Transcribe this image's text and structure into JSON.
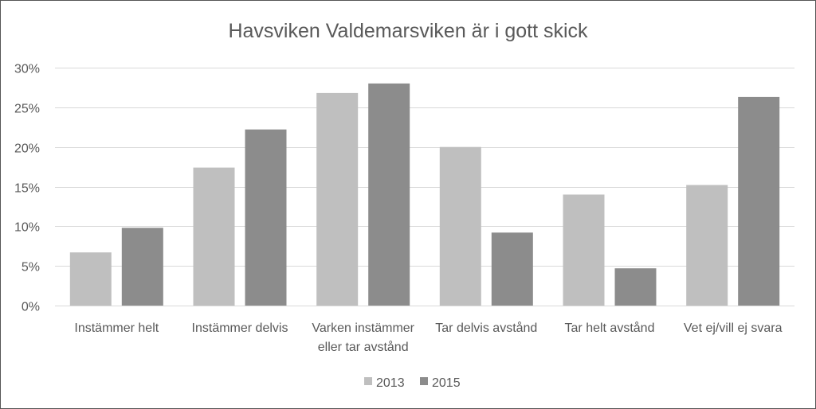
{
  "chart_data": {
    "type": "bar",
    "title": "Havsviken Valdemarsviken är i gott skick",
    "categories": [
      [
        "Instämmer helt"
      ],
      [
        "Instämmer delvis"
      ],
      [
        "Varken instämmer",
        "eller tar avstånd"
      ],
      [
        "Tar delvis avstånd"
      ],
      [
        "Tar helt avstånd"
      ],
      [
        "Vet ej/vill ej svara"
      ]
    ],
    "series": [
      {
        "name": "2013",
        "color": "#bfbfbf",
        "values": [
          6.7,
          17.4,
          26.8,
          20.0,
          14.0,
          15.2
        ]
      },
      {
        "name": "2015",
        "color": "#8c8c8c",
        "values": [
          9.8,
          22.2,
          28.0,
          9.2,
          4.7,
          26.3
        ]
      }
    ],
    "yticks": [
      "0%",
      "5%",
      "10%",
      "15%",
      "20%",
      "25%",
      "30%"
    ],
    "ylim": [
      0,
      30
    ],
    "grid": true,
    "legend_position": "bottom"
  }
}
